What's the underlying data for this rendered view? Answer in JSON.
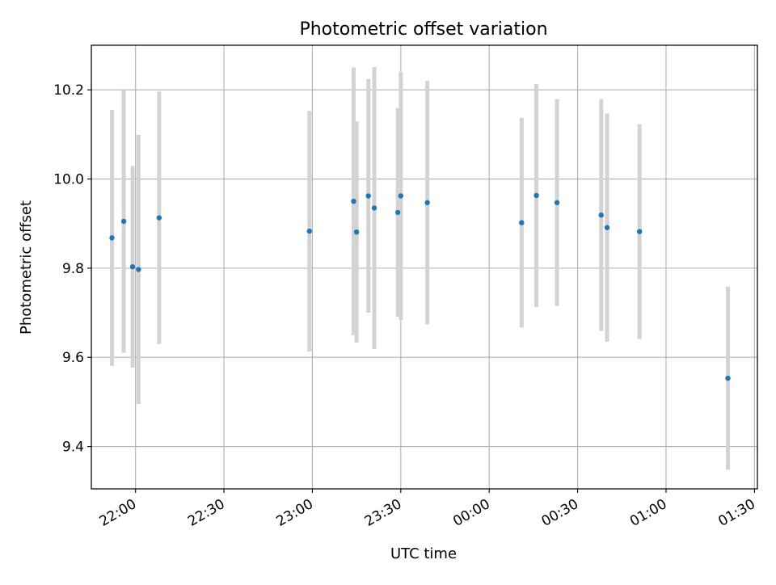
{
  "chart_data": {
    "type": "scatter",
    "title": "Photometric offset variation",
    "xlabel": "UTC time",
    "ylabel": "Photometric offset",
    "x_tick_labels": [
      "22:00",
      "22:30",
      "23:00",
      "23:30",
      "00:00",
      "00:30",
      "01:00",
      "01:30"
    ],
    "y_tick_labels": [
      "9.4",
      "9.6",
      "9.8",
      "10.0",
      "10.2"
    ],
    "y_ticks": [
      9.4,
      9.6,
      9.8,
      10.0,
      10.2
    ],
    "xlim": [
      "2000-01-01T21:45:00",
      "2000-01-02T01:31:00"
    ],
    "ylim": [
      9.305,
      10.3
    ],
    "grid": true,
    "colors": {
      "marker": "#1f77b4",
      "errorbar": "#d3d3d3",
      "grid": "#b0b0b0"
    },
    "series": [
      {
        "points": [
          {
            "x": "2000-01-01T21:52:00",
            "y": 9.868,
            "yerr": 0.287
          },
          {
            "x": "2000-01-01T21:56:00",
            "y": 9.905,
            "yerr": 0.295
          },
          {
            "x": "2000-01-01T21:59:00",
            "y": 9.803,
            "yerr": 0.226
          },
          {
            "x": "2000-01-01T22:01:00",
            "y": 9.797,
            "yerr": 0.302
          },
          {
            "x": "2000-01-01T22:08:00",
            "y": 9.913,
            "yerr": 0.283
          },
          {
            "x": "2000-01-01T22:59:00",
            "y": 9.883,
            "yerr": 0.27
          },
          {
            "x": "2000-01-01T23:14:00",
            "y": 9.95,
            "yerr": 0.3
          },
          {
            "x": "2000-01-01T23:15:00",
            "y": 9.881,
            "yerr": 0.248
          },
          {
            "x": "2000-01-01T23:19:00",
            "y": 9.962,
            "yerr": 0.262
          },
          {
            "x": "2000-01-01T23:21:00",
            "y": 9.935,
            "yerr": 0.316
          },
          {
            "x": "2000-01-01T23:29:00",
            "y": 9.925,
            "yerr": 0.234
          },
          {
            "x": "2000-01-01T23:30:00",
            "y": 9.962,
            "yerr": 0.278
          },
          {
            "x": "2000-01-01T23:39:00",
            "y": 9.947,
            "yerr": 0.273
          },
          {
            "x": "2000-01-02T00:11:00",
            "y": 9.902,
            "yerr": 0.235
          },
          {
            "x": "2000-01-02T00:16:00",
            "y": 9.963,
            "yerr": 0.25
          },
          {
            "x": "2000-01-02T00:23:00",
            "y": 9.947,
            "yerr": 0.232
          },
          {
            "x": "2000-01-02T00:38:00",
            "y": 9.919,
            "yerr": 0.26
          },
          {
            "x": "2000-01-02T00:40:00",
            "y": 9.891,
            "yerr": 0.256
          },
          {
            "x": "2000-01-02T00:51:00",
            "y": 9.882,
            "yerr": 0.241
          },
          {
            "x": "2000-01-02T01:21:00",
            "y": 9.553,
            "yerr": 0.205
          }
        ]
      }
    ]
  }
}
